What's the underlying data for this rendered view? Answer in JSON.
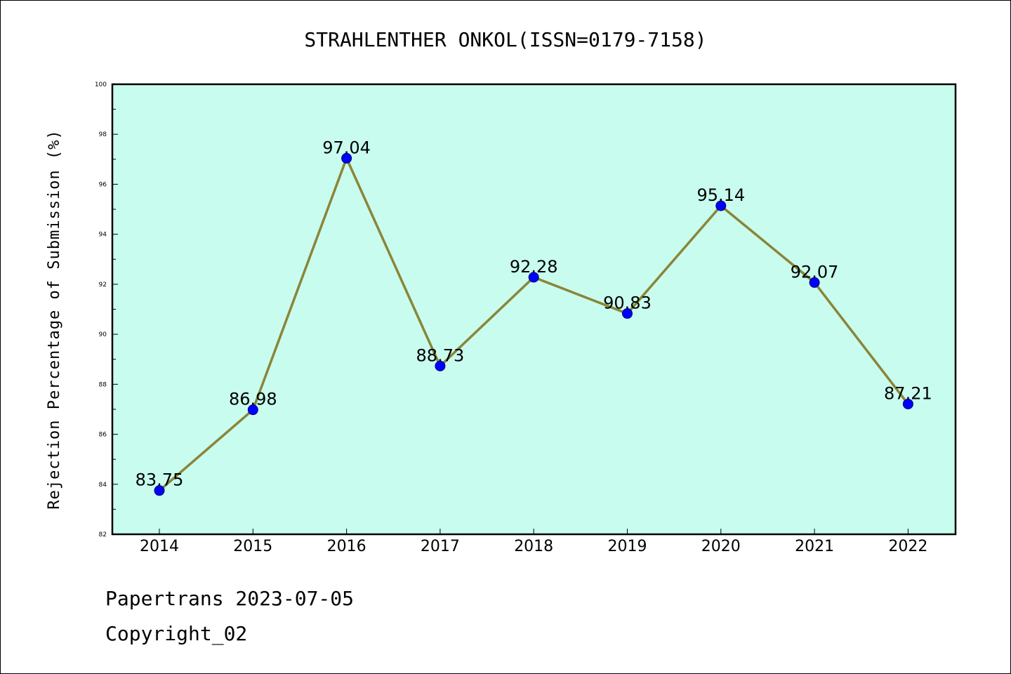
{
  "footer": {
    "line1": "Papertrans 2023-07-05",
    "line2": "Copyright_02"
  },
  "colors": {
    "plot_background": "#c8fcee",
    "line": "#8b8538",
    "marker": "#0000ff"
  },
  "chart_data": {
    "type": "line",
    "title": "STRAHLENTHER ONKOL(ISSN=0179-7158)",
    "xlabel": "",
    "ylabel": "Rejection Percentage of Submission (%)",
    "categories": [
      "2014",
      "2015",
      "2016",
      "2017",
      "2018",
      "2019",
      "2020",
      "2021",
      "2022"
    ],
    "series": [
      {
        "values": [
          83.75,
          86.98,
          97.04,
          88.73,
          92.28,
          90.83,
          95.14,
          92.07,
          87.21
        ]
      }
    ],
    "data_labels": [
      "83.75",
      "86.98",
      "97.04",
      "88.73",
      "92.28",
      "90.83",
      "95.14",
      "92.07",
      "87.21"
    ],
    "ylim": [
      82,
      100
    ],
    "yticks": [
      82,
      84,
      86,
      88,
      90,
      92,
      94,
      96,
      98,
      100
    ],
    "grid": false,
    "legend": "none"
  }
}
